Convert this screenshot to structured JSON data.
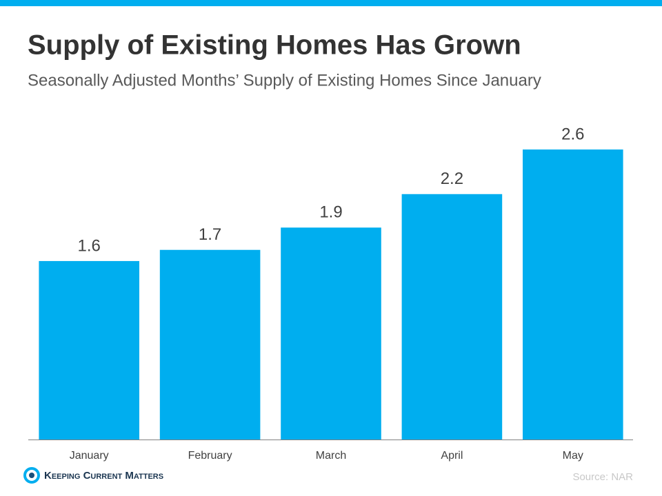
{
  "chart_data": {
    "type": "bar",
    "title": "Supply of Existing Homes Has Grown",
    "subtitle": "Seasonally Adjusted Months’ Supply of Existing Homes Since January",
    "categories": [
      "January",
      "February",
      "March",
      "April",
      "May"
    ],
    "values": [
      1.6,
      1.7,
      1.9,
      2.2,
      2.6
    ],
    "color": "#00aeef",
    "ylim": [
      0,
      2.6
    ],
    "grid": false,
    "source": "Source: NAR",
    "logo": "Keeping Current Matters"
  }
}
